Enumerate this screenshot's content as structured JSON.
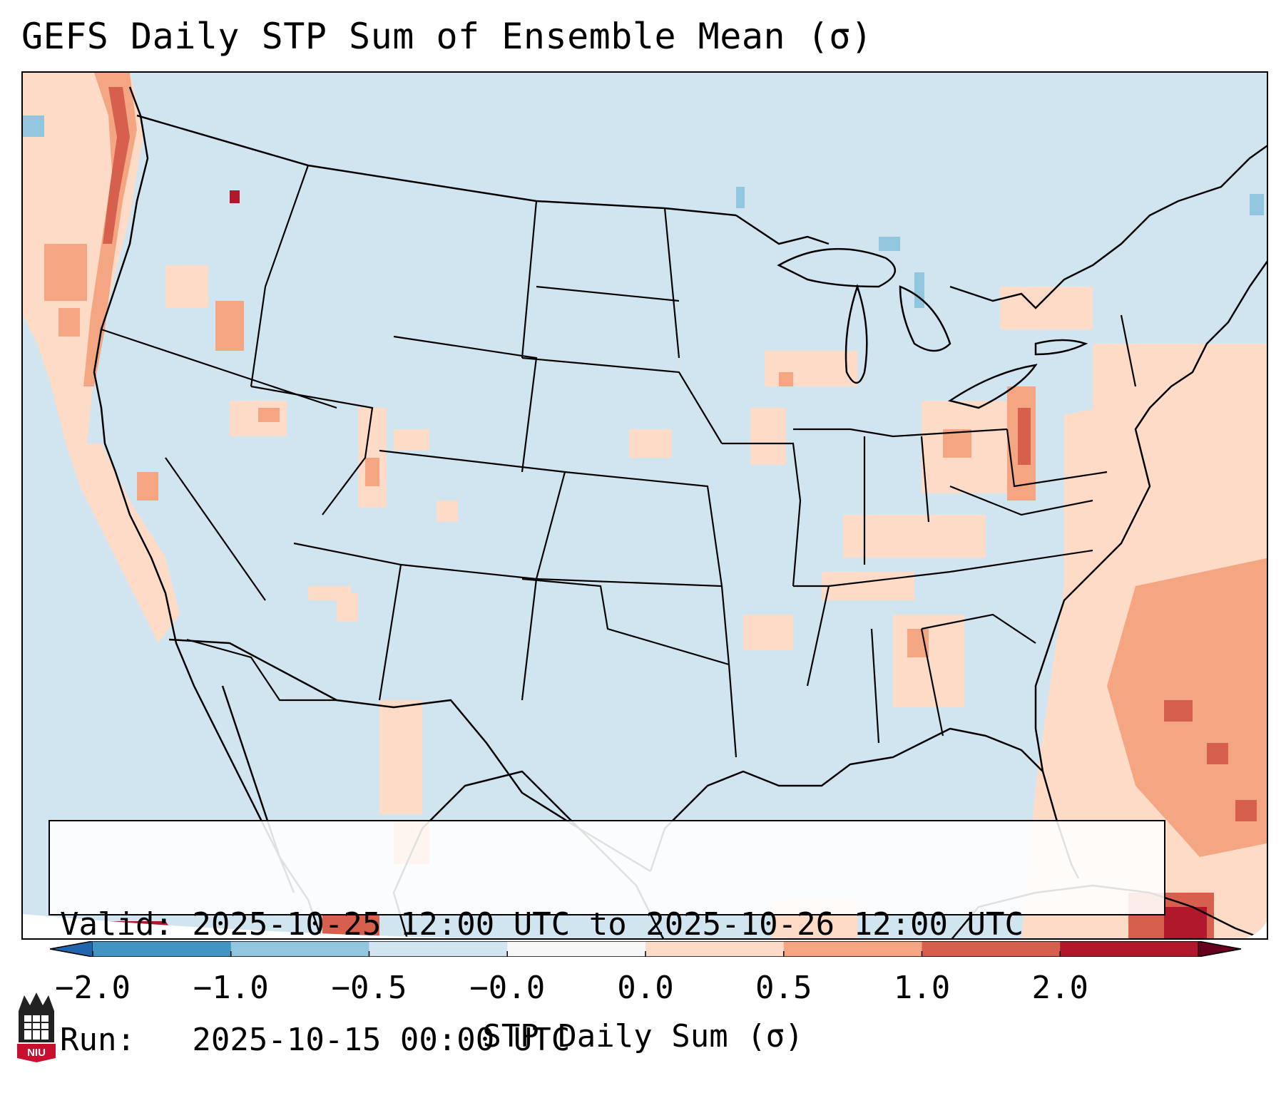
{
  "title": "GEFS Daily STP Sum of Ensemble Mean (σ)",
  "info_box": {
    "valid_line": "Valid: 2025-10-25 12:00 UTC to 2025-10-26 12:00 UTC",
    "run_line": "Run:   2025-10-15 00:00 UTC"
  },
  "colorbar": {
    "label": "STP Daily Sum (σ)",
    "ticks": [
      "−2.0",
      "−1.0",
      "−0.5",
      "−0.0",
      "0.0",
      "0.5",
      "1.0",
      "2.0"
    ],
    "colors": [
      "#4393c3",
      "#92c5de",
      "#d1e5f0",
      "#f7f7f7",
      "#fddbc7",
      "#f4a582",
      "#d6604d",
      "#b2182b"
    ],
    "extend": "both"
  },
  "map": {
    "region": "Continental United States",
    "background_color": "#d1e5f0"
  },
  "logo": {
    "text": "NIU",
    "color": "#c8102e"
  }
}
